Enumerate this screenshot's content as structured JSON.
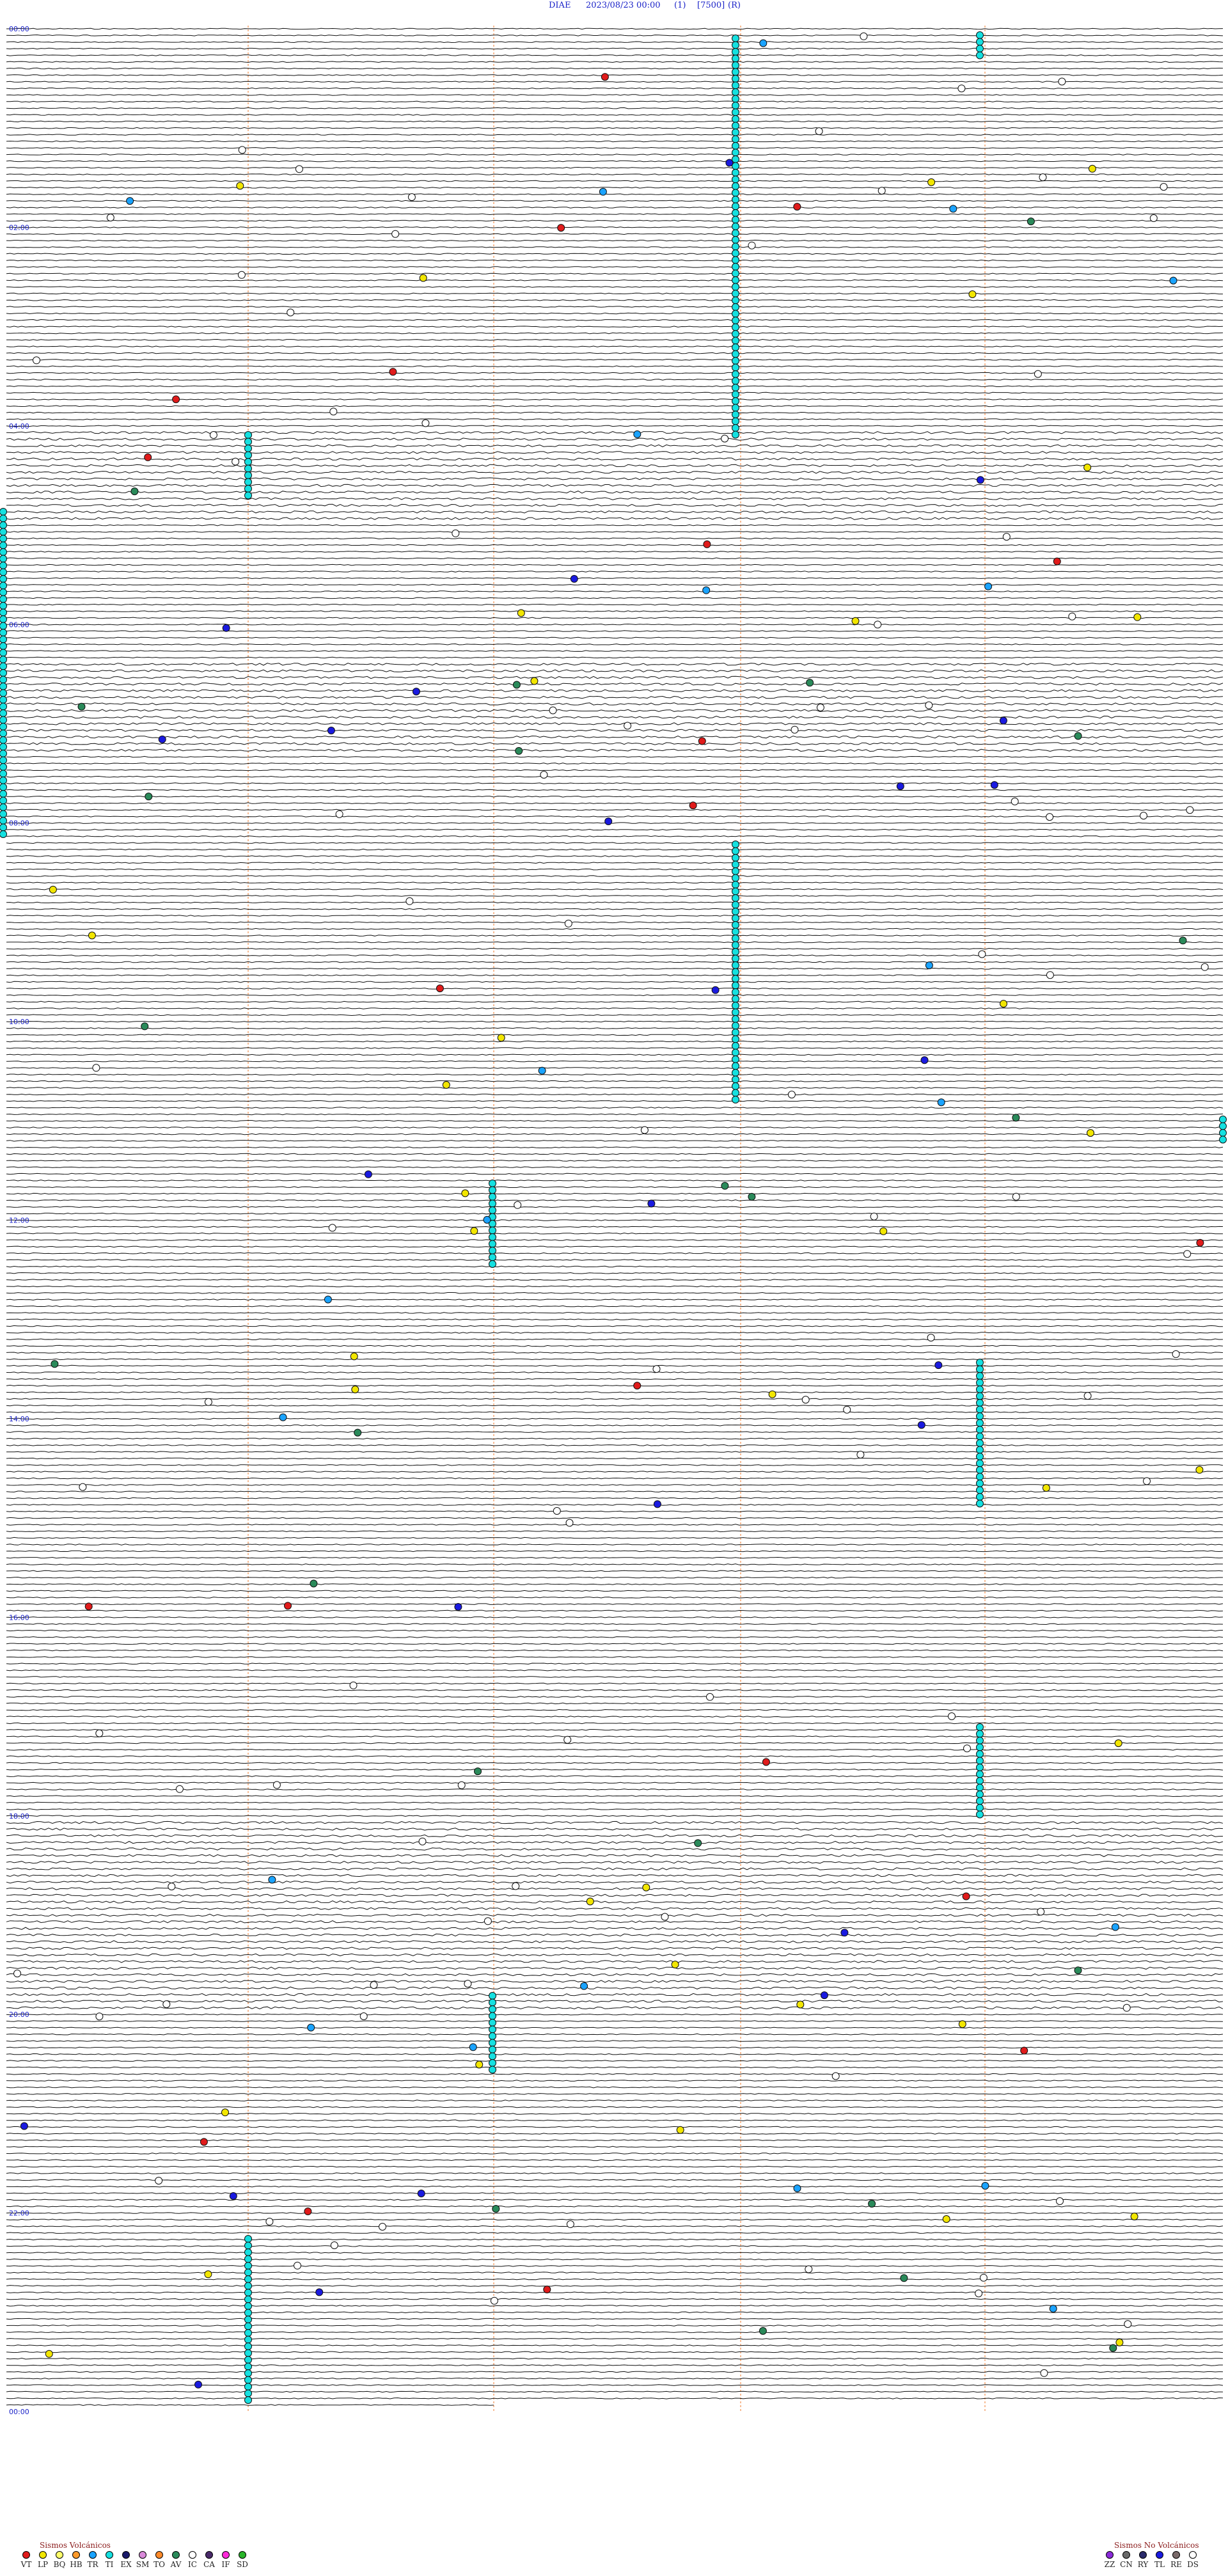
{
  "header": {
    "station": "DIAE",
    "datetime": "2023/08/23 00:00",
    "channel": "(1)",
    "scale": "[7500]",
    "filter": "(R)"
  },
  "hour_labels": [
    "00:00",
    "02:00",
    "04:00",
    "06:00",
    "08:00",
    "10:00",
    "12:00",
    "14:00",
    "16:00",
    "18:00",
    "20:00",
    "22:00",
    "00:00"
  ],
  "event_colors": {
    "VT": "#e01b1b",
    "LP": "#f2e600",
    "BQ": "#ffff6a",
    "HB": "#ff9a2a",
    "TR": "#1aa3ff",
    "TI": "#15e0e0",
    "EX": "#1a1a6a",
    "SM": "#d98ad9",
    "TO": "#ff8a2a",
    "AV": "#2a8a5a",
    "IC": "#ffffff",
    "CA": "#4a2a6a",
    "IF": "#ff2ad9",
    "SD": "#2ab52a",
    "ZZ": "#8a2ad9",
    "CN": "#6a6a6a",
    "RY": "#2a2a6a",
    "TL": "#1a1ae0",
    "RE": "#7a6a6a",
    "DS": "#ffffff"
  },
  "legend_volcanic": {
    "title": "Sismos Volcánicos",
    "items": [
      {
        "code": "VT",
        "color": "#e01b1b"
      },
      {
        "code": "LP",
        "color": "#f2e600"
      },
      {
        "code": "BQ",
        "color": "#ffff6a"
      },
      {
        "code": "HB",
        "color": "#ff9a2a"
      },
      {
        "code": "TR",
        "color": "#1aa3ff"
      },
      {
        "code": "TI",
        "color": "#15e0e0"
      },
      {
        "code": "EX",
        "color": "#1a1a6a"
      },
      {
        "code": "SM",
        "color": "#d98ad9"
      },
      {
        "code": "TO",
        "color": "#ff8a2a"
      },
      {
        "code": "AV",
        "color": "#2a8a5a"
      },
      {
        "code": "IC",
        "color": "#ffffff"
      },
      {
        "code": "CA",
        "color": "#4a2a6a"
      },
      {
        "code": "IF",
        "color": "#ff2ad9"
      },
      {
        "code": "SD",
        "color": "#2ab52a"
      }
    ]
  },
  "legend_nonvolcanic": {
    "title": "Sismos No Volcánicos",
    "items": [
      {
        "code": "ZZ",
        "color": "#8a2ad9"
      },
      {
        "code": "CN",
        "color": "#6a6a6a"
      },
      {
        "code": "RY",
        "color": "#2a2a6a"
      },
      {
        "code": "TL",
        "color": "#1a1ae0"
      },
      {
        "code": "RE",
        "color": "#7a6a6a"
      },
      {
        "code": "DS",
        "color": "#ffffff"
      }
    ]
  },
  "event_clusters": [
    {
      "type": "TI",
      "hour": 0.0,
      "minute_start": 0,
      "minute_end": 6
    },
    {
      "type": "TI",
      "hour": 0.0,
      "minute_start": 45,
      "minute_end": 46
    },
    {
      "type": "TI",
      "hour": 2.0,
      "minute_start": 0,
      "minute_end": 4
    },
    {
      "type": "TI",
      "hour": 4.0,
      "minute_start": 0,
      "minute_end": 2
    },
    {
      "type": "TI",
      "hour": 10.0,
      "minute_start": 0,
      "minute_end": 2
    }
  ]
}
